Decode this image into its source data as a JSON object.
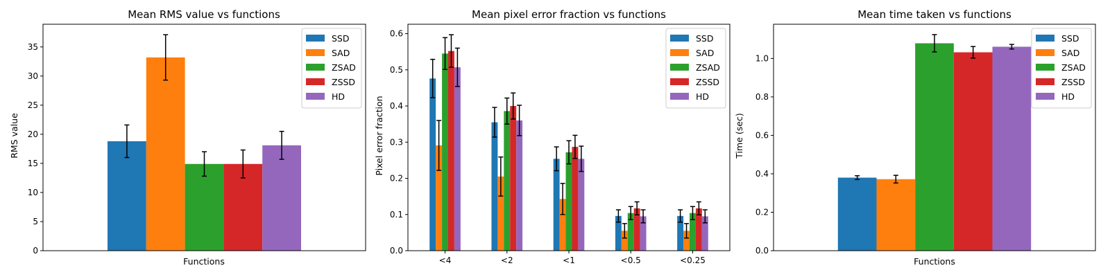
{
  "chart_data": [
    {
      "type": "bar",
      "title": "Mean RMS value vs functions",
      "xlabel": "Functions",
      "ylabel": "RMS value",
      "ylim": [
        0,
        38.9
      ],
      "yticks": [
        0,
        5,
        10,
        15,
        20,
        25,
        30,
        35
      ],
      "ytick_labels": [
        "0",
        "5",
        "10",
        "15",
        "20",
        "25",
        "30",
        "35"
      ],
      "categories": [
        ""
      ],
      "series": [
        {
          "name": "SSD",
          "color": "#1f77b4",
          "values": [
            18.8
          ],
          "errors": [
            2.8
          ]
        },
        {
          "name": "SAD",
          "color": "#ff7f0e",
          "values": [
            33.2
          ],
          "errors": [
            3.9
          ]
        },
        {
          "name": "ZSAD",
          "color": "#2ca02c",
          "values": [
            14.9
          ],
          "errors": [
            2.1
          ]
        },
        {
          "name": "ZSSD",
          "color": "#d62728",
          "values": [
            14.9
          ],
          "errors": [
            2.4
          ]
        },
        {
          "name": "HD",
          "color": "#9467bd",
          "values": [
            18.1
          ],
          "errors": [
            2.4
          ]
        }
      ],
      "legend": "top-right"
    },
    {
      "type": "bar",
      "title": "Mean pixel error fraction vs functions",
      "xlabel": "",
      "ylabel": "Pixel error fraction",
      "ylim": [
        0,
        0.626
      ],
      "yticks": [
        0,
        0.1,
        0.2,
        0.3,
        0.4,
        0.5,
        0.6
      ],
      "ytick_labels": [
        "0.0",
        "0.1",
        "0.2",
        "0.3",
        "0.4",
        "0.5",
        "0.6"
      ],
      "categories": [
        "<4",
        "<2",
        "<1",
        "<0.5",
        "<0.25"
      ],
      "series": [
        {
          "name": "SSD",
          "color": "#1f77b4",
          "values": [
            0.476,
            0.355,
            0.254,
            0.096,
            0.096
          ],
          "errors": [
            0.053,
            0.041,
            0.033,
            0.017,
            0.017
          ]
        },
        {
          "name": "SAD",
          "color": "#ff7f0e",
          "values": [
            0.291,
            0.205,
            0.143,
            0.055,
            0.055
          ],
          "errors": [
            0.069,
            0.054,
            0.043,
            0.02,
            0.02
          ]
        },
        {
          "name": "ZSAD",
          "color": "#2ca02c",
          "values": [
            0.545,
            0.386,
            0.272,
            0.104,
            0.104
          ],
          "errors": [
            0.044,
            0.036,
            0.032,
            0.018,
            0.018
          ]
        },
        {
          "name": "ZSSD",
          "color": "#d62728",
          "values": [
            0.552,
            0.4,
            0.287,
            0.117,
            0.117
          ],
          "errors": [
            0.045,
            0.036,
            0.032,
            0.018,
            0.018
          ]
        },
        {
          "name": "HD",
          "color": "#9467bd",
          "values": [
            0.507,
            0.36,
            0.254,
            0.095,
            0.095
          ],
          "errors": [
            0.053,
            0.042,
            0.035,
            0.018,
            0.018
          ]
        }
      ],
      "legend": "top-right"
    },
    {
      "type": "bar",
      "title": "Mean time taken vs functions",
      "xlabel": "Functions",
      "ylabel": "Time (sec)",
      "ylim": [
        0,
        1.178
      ],
      "yticks": [
        0,
        0.2,
        0.4,
        0.6,
        0.8,
        1.0
      ],
      "ytick_labels": [
        "0.0",
        "0.2",
        "0.4",
        "0.6",
        "0.8",
        "1.0"
      ],
      "categories": [
        ""
      ],
      "series": [
        {
          "name": "SSD",
          "color": "#1f77b4",
          "values": [
            0.38
          ],
          "errors": [
            0.01
          ]
        },
        {
          "name": "SAD",
          "color": "#ff7f0e",
          "values": [
            0.372
          ],
          "errors": [
            0.02
          ]
        },
        {
          "name": "ZSAD",
          "color": "#2ca02c",
          "values": [
            1.079
          ],
          "errors": [
            0.045
          ]
        },
        {
          "name": "ZSSD",
          "color": "#d62728",
          "values": [
            1.032
          ],
          "errors": [
            0.03
          ]
        },
        {
          "name": "HD",
          "color": "#9467bd",
          "values": [
            1.061
          ],
          "errors": [
            0.012
          ]
        }
      ],
      "legend": "top-right"
    }
  ]
}
